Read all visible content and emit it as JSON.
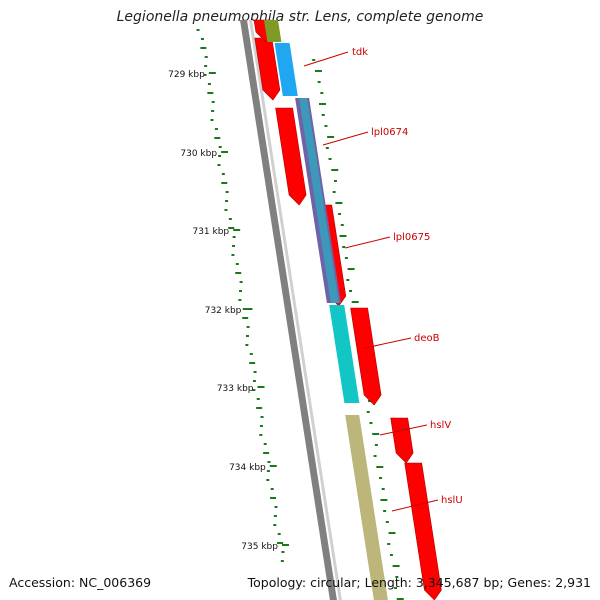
{
  "title": "Legionella pneumophila str. Lens, complete genome",
  "footer": {
    "accession": "Accession: NC_006369",
    "summary": "Topology: circular; Length: 3,345,687 bp; Genes: 2,931"
  },
  "colors": {
    "forward_cds": "#ff0000",
    "cog_blue": "#1fa7f2",
    "cog_cyan": "#12c6c6",
    "cog_khaki": "#bdb67a",
    "cog_olive": "#7f9a27",
    "cog_slate": "#6f63a8",
    "backbone": "#808080",
    "gc_ticks": "#1a7a1a",
    "label_line": "#cc0000"
  },
  "scale_labels": [
    "729 kbp",
    "730 kbp",
    "731 kbp",
    "732 kbp",
    "733 kbp",
    "734 kbp",
    "735 kbp"
  ],
  "genes": [
    {
      "label": "tdk",
      "cog_color": "cog_blue"
    },
    {
      "label": "lpl0674",
      "cog_color": "cog_slate"
    },
    {
      "label": "lpl0675",
      "cog_color": "cog_slate"
    },
    {
      "label": "deoB",
      "cog_color": "cog_cyan"
    },
    {
      "label": "hslV",
      "cog_color": "cog_khaki"
    },
    {
      "label": "hslU",
      "cog_color": "cog_khaki"
    }
  ]
}
